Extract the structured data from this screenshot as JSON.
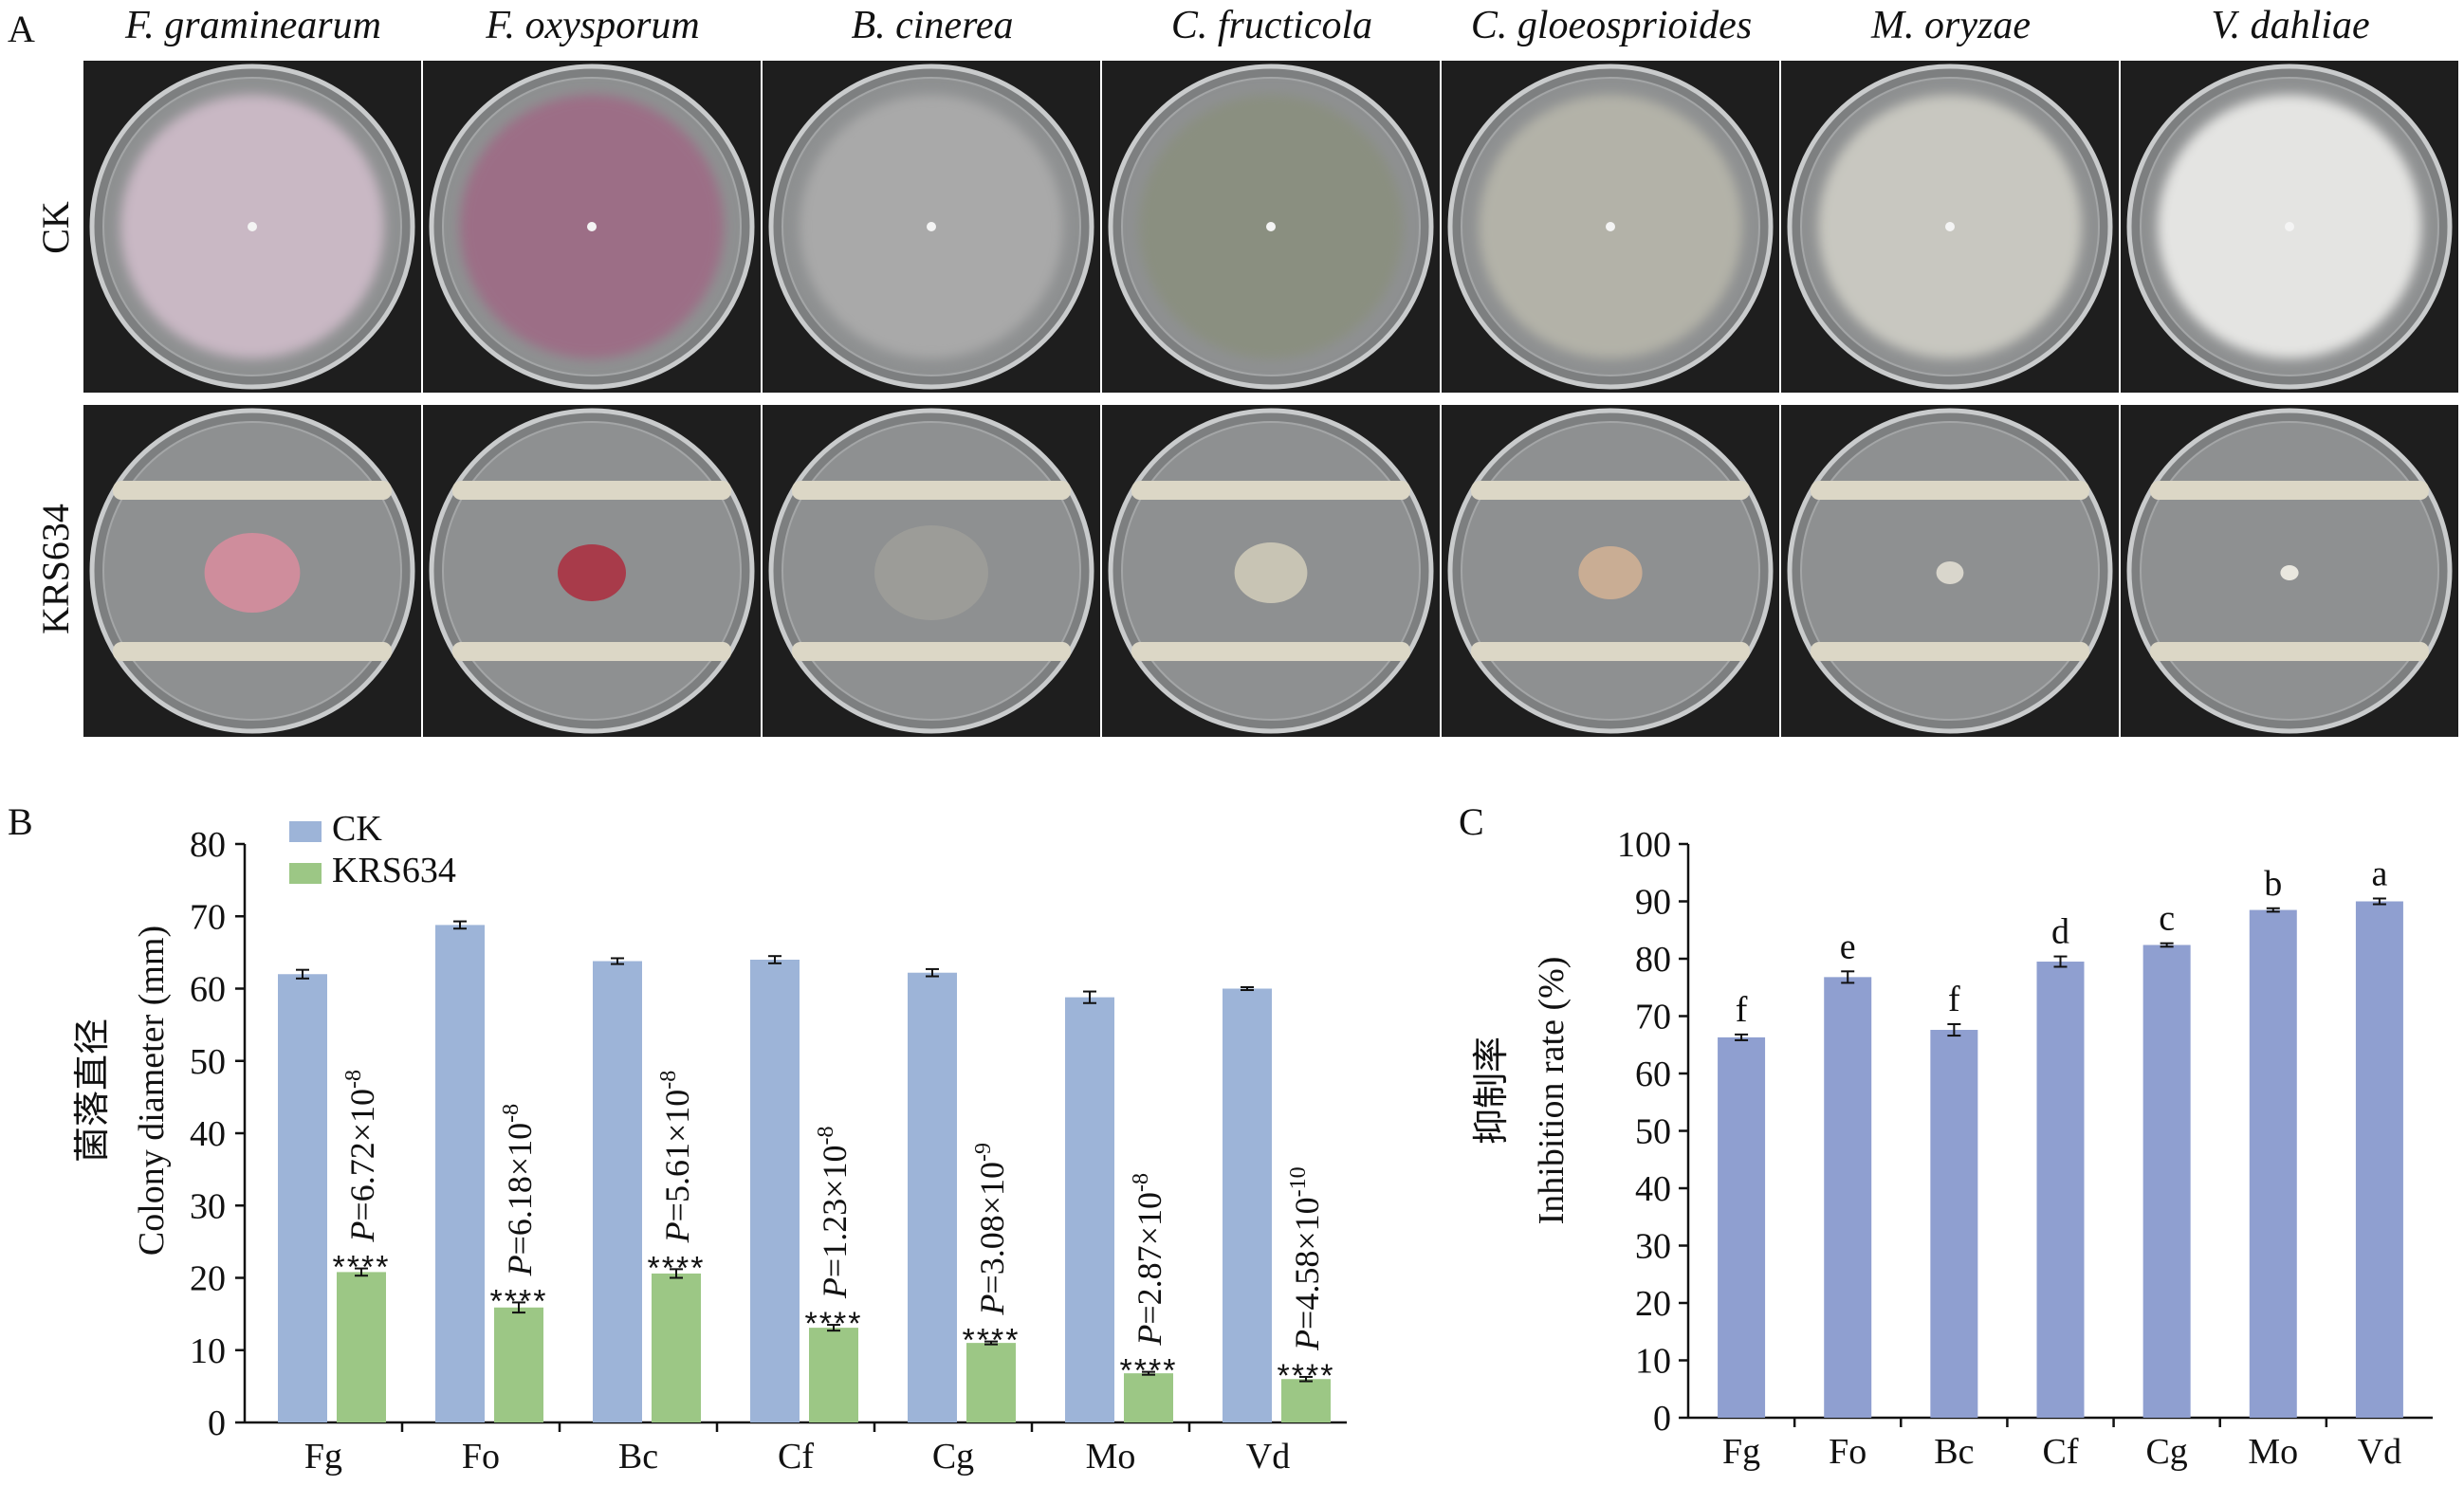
{
  "panel_a": {
    "letter": "A",
    "species": [
      "F. graminearum",
      "F. oxysporum",
      "B. cinerea",
      "C. fructicola",
      "C. gloeosprioides",
      "M. oryzae",
      "V. dahliae"
    ],
    "rows": [
      "CK",
      "KRS634"
    ],
    "ck_colony_colors": [
      "#c9b8c4",
      "#9c6e86",
      "#a9a9a9",
      "#8a8f80",
      "#b3b2a8",
      "#c8c7c0",
      "#e4e4e2"
    ],
    "krs_colony_colors": [
      "#cf8d9c",
      "#a83b4a",
      "#9c9c98",
      "#c8c4b4",
      "#c9ad94",
      "#d9d6cc",
      "#e9e7df"
    ],
    "plate_background": "#1e1e1e"
  },
  "panel_b": {
    "letter": "B",
    "ylabel_cn": "菌落直径",
    "ylabel_en": "Colony diameter (mm)",
    "legend": [
      "CK",
      "KRS634"
    ],
    "stars_label": "****",
    "p_values": [
      {
        "prefix": "P",
        "base": "=6.72×10",
        "exp": "-8"
      },
      {
        "prefix": "P",
        "base": "=6.18×10",
        "exp": "-8"
      },
      {
        "prefix": "P",
        "base": "=5.61×10",
        "exp": "-8"
      },
      {
        "prefix": "P",
        "base": "=1.23×10",
        "exp": "-8"
      },
      {
        "prefix": "P",
        "base": "=3.08×10",
        "exp": "-9"
      },
      {
        "prefix": "P",
        "base": "=2.87×10",
        "exp": "-8"
      },
      {
        "prefix": "P",
        "base": "=4.58×10",
        "exp": "-10"
      }
    ]
  },
  "panel_c": {
    "letter": "C",
    "ylabel_cn": "抑制率",
    "ylabel_en": "Inhibition rate (%)"
  },
  "colors": {
    "ck": "#9db4d8",
    "krs": "#9cc785",
    "inhibition": "#8f9fd0",
    "axis": "#111111"
  },
  "chart_data": [
    {
      "type": "bar",
      "categories": [
        "Fg",
        "Fo",
        "Bc",
        "Cf",
        "Cg",
        "Mo",
        "Vd"
      ],
      "series": [
        {
          "name": "CK",
          "values": [
            62.0,
            68.8,
            63.8,
            64.0,
            62.2,
            58.8,
            60.0
          ],
          "errors": [
            0.6,
            0.5,
            0.4,
            0.5,
            0.5,
            0.8,
            0.2
          ]
        },
        {
          "name": "KRS634",
          "values": [
            20.8,
            15.9,
            20.6,
            13.1,
            11.0,
            6.8,
            6.0
          ],
          "errors": [
            0.5,
            0.7,
            0.6,
            0.4,
            0.2,
            0.2,
            0.3
          ]
        }
      ],
      "ylabel": "Colony diameter (mm)",
      "ylim": [
        0,
        80
      ],
      "yticks": [
        0,
        10,
        20,
        30,
        40,
        50,
        60,
        70,
        80
      ],
      "legend": "top-left",
      "grid": false
    },
    {
      "type": "bar",
      "categories": [
        "Fg",
        "Fo",
        "Bc",
        "Cf",
        "Cg",
        "Mo",
        "Vd"
      ],
      "values": [
        66.3,
        76.8,
        67.6,
        79.5,
        82.4,
        88.5,
        90.0
      ],
      "errors": [
        0.5,
        1.0,
        1.0,
        0.9,
        0.3,
        0.3,
        0.5
      ],
      "significance": [
        "f",
        "e",
        "f",
        "d",
        "c",
        "b",
        "a"
      ],
      "ylabel": "Inhibition rate (%)",
      "ylim": [
        0,
        100
      ],
      "yticks": [
        0,
        10,
        20,
        30,
        40,
        50,
        60,
        70,
        80,
        90,
        100
      ],
      "grid": false
    }
  ]
}
